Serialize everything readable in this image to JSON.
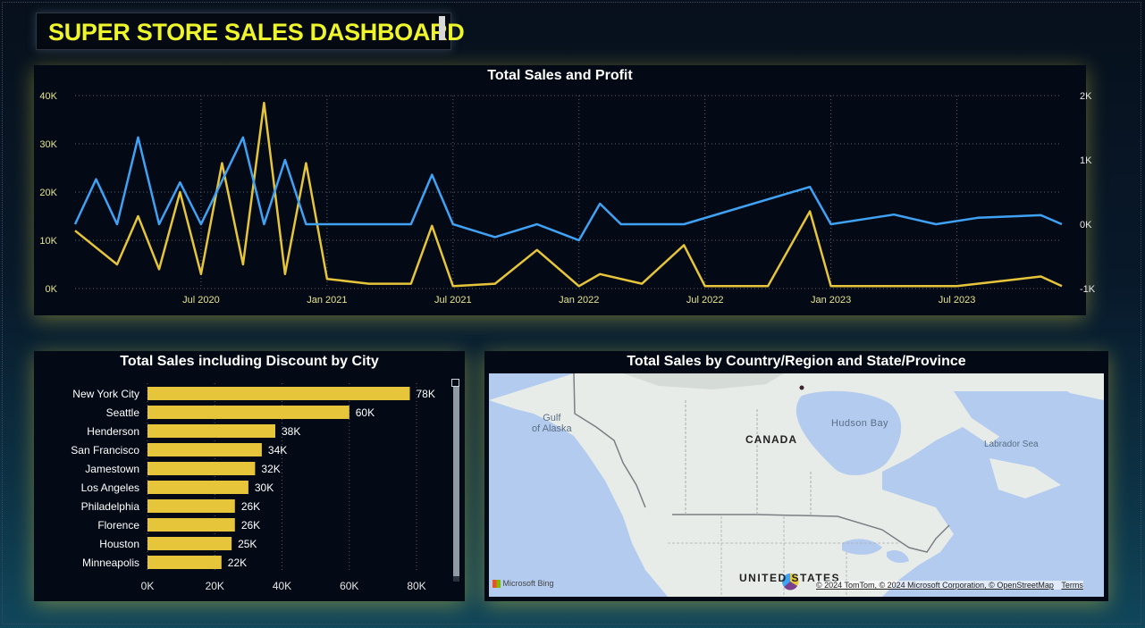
{
  "dashboard_title": "SUPER STORE SALES DASHBOARD",
  "colors": {
    "sales": "#3fa2f5",
    "profit": "#e6c53a",
    "bar": "#e6c53a",
    "title": "#eef52a"
  },
  "chart_data": [
    {
      "type": "line",
      "title": "Total Sales and Profit",
      "x_tick_labels": [
        "Jul 2020",
        "Jan 2021",
        "Jul 2021",
        "Jan 2022",
        "Jul 2022",
        "Jan 2023",
        "Jul 2023"
      ],
      "y_left_ticks": [
        "40K",
        "30K",
        "20K",
        "10K",
        "0K"
      ],
      "y_right_ticks": [
        "2K",
        "1K",
        "0K",
        "-1K"
      ],
      "ylim_left": [
        0,
        40000
      ],
      "ylim_right": [
        -1000,
        2000
      ],
      "xlim": [
        "2020-01",
        "2023-12"
      ],
      "grid": true,
      "series": [
        {
          "axis": "left",
          "color": "#e6c53a",
          "points": [
            [
              "2020-01",
              12000
            ],
            [
              "2020-03",
              5000
            ],
            [
              "2020-04",
              15000
            ],
            [
              "2020-05",
              4000
            ],
            [
              "2020-06",
              20000
            ],
            [
              "2020-07",
              3000
            ],
            [
              "2020-08",
              26000
            ],
            [
              "2020-09",
              5000
            ],
            [
              "2020-10",
              38500
            ],
            [
              "2020-11",
              3000
            ],
            [
              "2020-12",
              26000
            ],
            [
              "2021-01",
              2000
            ],
            [
              "2021-03",
              1000
            ],
            [
              "2021-05",
              1000
            ],
            [
              "2021-06",
              13000
            ],
            [
              "2021-07",
              500
            ],
            [
              "2021-09",
              1000
            ],
            [
              "2021-11",
              8000
            ],
            [
              "2022-01",
              500
            ],
            [
              "2022-02",
              3000
            ],
            [
              "2022-04",
              1000
            ],
            [
              "2022-06",
              9000
            ],
            [
              "2022-07",
              500
            ],
            [
              "2022-10",
              500
            ],
            [
              "2022-12",
              16000
            ],
            [
              "2023-01",
              500
            ],
            [
              "2023-05",
              500
            ],
            [
              "2023-07",
              500
            ],
            [
              "2023-10",
              2000
            ],
            [
              "2023-11",
              2500
            ],
            [
              "2023-12",
              500
            ]
          ]
        },
        {
          "axis": "right",
          "color": "#3fa2f5",
          "points": [
            [
              "2020-01",
              0
            ],
            [
              "2020-02",
              700
            ],
            [
              "2020-03",
              0
            ],
            [
              "2020-04",
              1350
            ],
            [
              "2020-05",
              0
            ],
            [
              "2020-06",
              650
            ],
            [
              "2020-07",
              0
            ],
            [
              "2020-09",
              1350
            ],
            [
              "2020-10",
              0
            ],
            [
              "2020-11",
              1000
            ],
            [
              "2020-12",
              0
            ],
            [
              "2021-01",
              0
            ],
            [
              "2021-05",
              0
            ],
            [
              "2021-06",
              770
            ],
            [
              "2021-07",
              0
            ],
            [
              "2021-09",
              -200
            ],
            [
              "2021-11",
              0
            ],
            [
              "2022-01",
              -250
            ],
            [
              "2022-02",
              320
            ],
            [
              "2022-03",
              0
            ],
            [
              "2022-06",
              0
            ],
            [
              "2022-12",
              580
            ],
            [
              "2023-01",
              0
            ],
            [
              "2023-04",
              150
            ],
            [
              "2023-06",
              0
            ],
            [
              "2023-08",
              100
            ],
            [
              "2023-11",
              140
            ],
            [
              "2023-12",
              0
            ]
          ]
        }
      ]
    },
    {
      "type": "bar",
      "orientation": "horizontal",
      "title": "Total Sales including Discount by City",
      "categories": [
        "New York City",
        "Seattle",
        "Henderson",
        "San Francisco",
        "Jamestown",
        "Los Angeles",
        "Philadelphia",
        "Florence",
        "Houston",
        "Minneapolis"
      ],
      "values": [
        78000,
        60000,
        38000,
        34000,
        32000,
        30000,
        26000,
        26000,
        25000,
        22000
      ],
      "value_labels": [
        "78K",
        "60K",
        "38K",
        "34K",
        "32K",
        "30K",
        "26K",
        "26K",
        "25K",
        "22K"
      ],
      "x_tick_labels": [
        "0K",
        "20K",
        "40K",
        "60K",
        "80K"
      ],
      "xlim": [
        0,
        80000
      ],
      "grid": true
    }
  ],
  "map_panel": {
    "title": "Total Sales by Country/Region and State/Province",
    "labels": {
      "gulf": "Gulf\nof Alaska",
      "canada": "CANADA",
      "hudson": "Hudson Bay",
      "labrador": "Labrador Sea",
      "us": "UNITED STATES"
    },
    "logo": "Microsoft Bing",
    "attribution": "© 2024 TomTom, © 2024 Microsoft Corporation, © OpenStreetMap",
    "terms": "Terms"
  }
}
